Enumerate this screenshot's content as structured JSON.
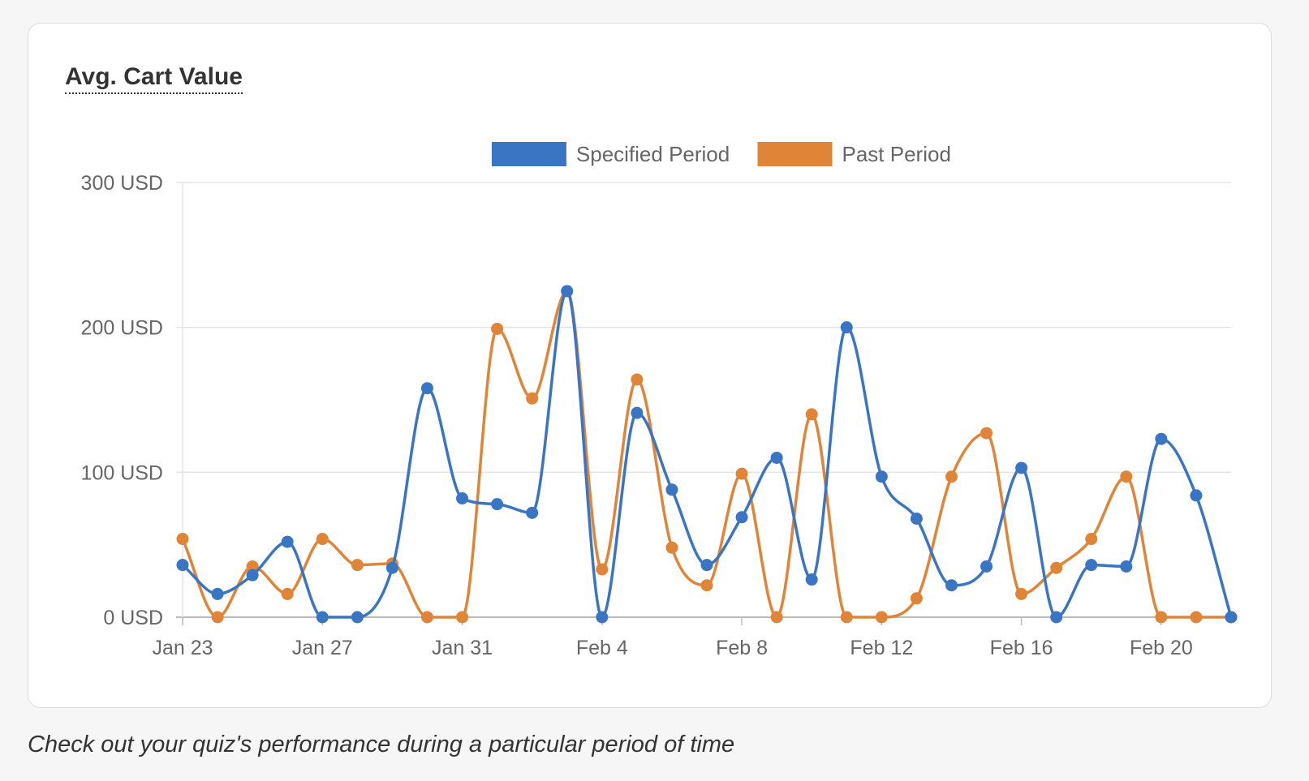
{
  "card": {
    "title": "Avg. Cart Value"
  },
  "caption": "Check out your quiz's performance during a particular period of time",
  "chart_data": {
    "type": "line",
    "title": "Avg. Cart Value",
    "xlabel": "",
    "ylabel": "",
    "x": [
      "Jan 23",
      "Jan 24",
      "Jan 25",
      "Jan 26",
      "Jan 27",
      "Jan 28",
      "Jan 29",
      "Jan 30",
      "Jan 31",
      "Feb 1",
      "Feb 2",
      "Feb 3",
      "Feb 4",
      "Feb 5",
      "Feb 6",
      "Feb 7",
      "Feb 8",
      "Feb 9",
      "Feb 10",
      "Feb 11",
      "Feb 12",
      "Feb 13",
      "Feb 14",
      "Feb 15",
      "Feb 16",
      "Feb 17",
      "Feb 18",
      "Feb 19",
      "Feb 20",
      "Feb 21",
      "Feb 22"
    ],
    "x_tick_labels": [
      "Jan 23",
      "Jan 27",
      "Jan 31",
      "Feb 4",
      "Feb 8",
      "Feb 12",
      "Feb 16",
      "Feb 20"
    ],
    "y_tick_labels": [
      "0 USD",
      "100 USD",
      "200 USD",
      "300 USD"
    ],
    "ylim": [
      0,
      300
    ],
    "y_tick_values": [
      0,
      100,
      200,
      300
    ],
    "grid": true,
    "legend_position": "top-center",
    "series": [
      {
        "name": "Specified Period",
        "color": "#3a75c4",
        "values": [
          36,
          16,
          29,
          52,
          0,
          0,
          34,
          158,
          82,
          78,
          72,
          225,
          0,
          141,
          88,
          36,
          69,
          110,
          26,
          200,
          97,
          68,
          22,
          35,
          103,
          0,
          36,
          35,
          123,
          84,
          0
        ]
      },
      {
        "name": "Past Period",
        "color": "#e08537",
        "values": [
          54,
          0,
          35,
          16,
          54,
          36,
          37,
          0,
          0,
          199,
          151,
          225,
          33,
          164,
          48,
          22,
          99,
          0,
          140,
          0,
          0,
          13,
          97,
          127,
          16,
          34,
          54,
          97,
          0,
          0,
          0
        ]
      }
    ]
  }
}
